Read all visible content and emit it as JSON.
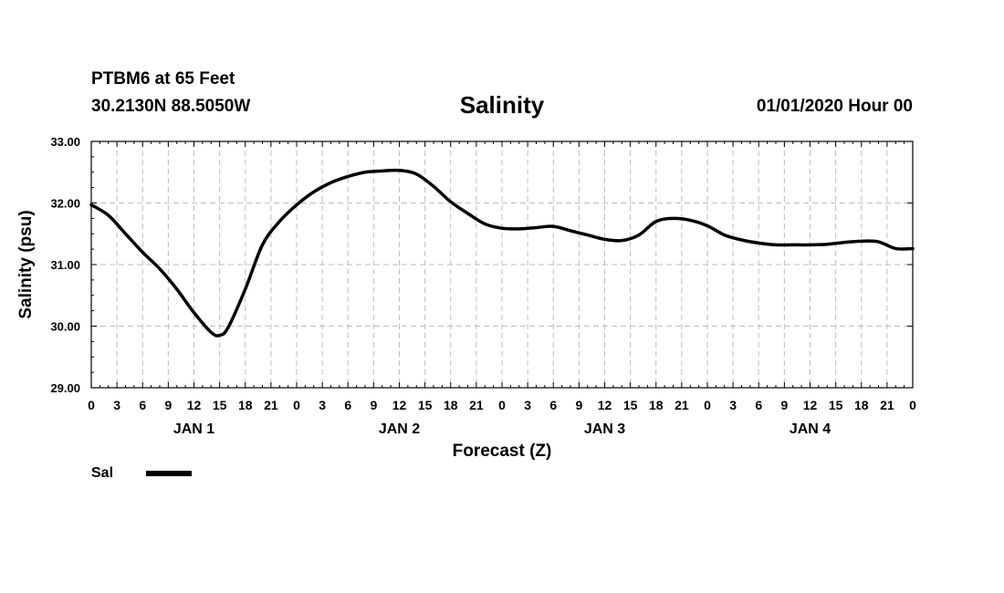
{
  "header": {
    "station": "PTBM6 at 65 Feet",
    "coords": "30.2130N 88.5050W",
    "title": "Salinity",
    "timestamp": "01/01/2020 Hour 00"
  },
  "chart_data": {
    "type": "line",
    "title": "Salinity",
    "xlabel": "Forecast (Z)",
    "ylabel": "Salinity (psu)",
    "ylim": [
      29.0,
      33.0
    ],
    "yticks": [
      29.0,
      30.0,
      31.0,
      32.0,
      33.0
    ],
    "yticklabels": [
      "29.00",
      "30.00",
      "31.00",
      "32.00",
      "33.00"
    ],
    "xlim": [
      0,
      96
    ],
    "xticklabels": [
      "0",
      "3",
      "6",
      "9",
      "12",
      "15",
      "18",
      "21",
      "0",
      "3",
      "6",
      "9",
      "12",
      "15",
      "18",
      "21",
      "0",
      "3",
      "6",
      "9",
      "12",
      "15",
      "18",
      "21",
      "0",
      "3",
      "6",
      "9",
      "12",
      "15",
      "18",
      "21",
      "0"
    ],
    "day_labels": [
      {
        "label": "JAN 1",
        "hour": 12
      },
      {
        "label": "JAN 2",
        "hour": 36
      },
      {
        "label": "JAN 3",
        "hour": 60
      },
      {
        "label": "JAN 4",
        "hour": 84
      }
    ],
    "grid": true,
    "legend_position": "bottom-left",
    "series": [
      {
        "name": "Sal",
        "color": "#000000",
        "x": [
          0,
          2,
          4,
          6,
          8,
          10,
          12,
          14,
          15,
          16,
          18,
          20,
          22,
          24,
          26,
          28,
          30,
          32,
          34,
          36,
          38,
          40,
          42,
          44,
          46,
          48,
          50,
          52,
          54,
          56,
          58,
          60,
          62,
          64,
          66,
          68,
          70,
          72,
          74,
          76,
          78,
          80,
          82,
          84,
          86,
          88,
          90,
          92,
          94,
          96
        ],
        "y": [
          31.97,
          31.8,
          31.5,
          31.2,
          30.93,
          30.6,
          30.22,
          29.9,
          29.85,
          29.98,
          30.6,
          31.32,
          31.7,
          31.97,
          32.18,
          32.33,
          32.43,
          32.5,
          32.52,
          32.53,
          32.47,
          32.27,
          32.02,
          31.83,
          31.66,
          31.59,
          31.58,
          31.6,
          31.62,
          31.55,
          31.48,
          31.41,
          31.39,
          31.48,
          31.7,
          31.75,
          31.72,
          31.63,
          31.48,
          31.4,
          31.35,
          31.32,
          31.32,
          31.32,
          31.33,
          31.36,
          31.38,
          31.37,
          31.26,
          31.26
        ]
      }
    ]
  }
}
